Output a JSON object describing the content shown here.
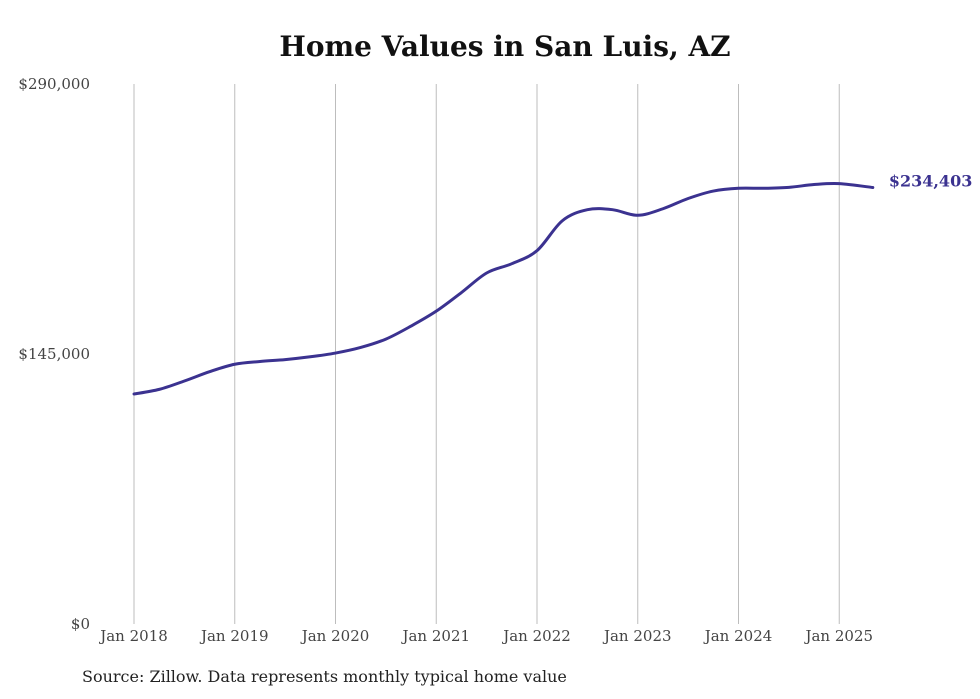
{
  "chart_data": {
    "type": "line",
    "title": "Home Values in San Luis, AZ",
    "xlabel": "",
    "ylabel": "",
    "x_ticks": [
      "Jan 2018",
      "Jan 2019",
      "Jan 2020",
      "Jan 2021",
      "Jan 2022",
      "Jan 2023",
      "Jan 2024",
      "Jan 2025"
    ],
    "y_ticks": [
      "$290,000",
      "$145,000",
      "$0"
    ],
    "ylim": [
      0,
      290000
    ],
    "xlim": [
      "2018-01",
      "2025-05"
    ],
    "grid": "vertical lines at each January",
    "line_color": "#3b3290",
    "end_label": "$234,403",
    "series": [
      {
        "x": [
          "2018-01",
          "2018-04",
          "2018-07",
          "2018-10",
          "2019-01",
          "2019-04",
          "2019-07",
          "2019-10",
          "2020-01",
          "2020-04",
          "2020-07",
          "2020-10",
          "2021-01",
          "2021-04",
          "2021-07",
          "2021-10",
          "2022-01",
          "2022-04",
          "2022-07",
          "2022-10",
          "2023-01",
          "2023-04",
          "2023-07",
          "2023-10",
          "2024-01",
          "2024-04",
          "2024-07",
          "2024-10",
          "2025-01",
          "2025-05"
        ],
        "values": [
          123500,
          126000,
          130500,
          135500,
          139500,
          141000,
          142000,
          143500,
          145500,
          148500,
          153000,
          160000,
          168000,
          178000,
          188500,
          193500,
          200500,
          216500,
          222500,
          222500,
          219500,
          223000,
          228500,
          232500,
          234000,
          234000,
          234500,
          236000,
          236500,
          234403
        ]
      }
    ]
  },
  "footer": {
    "source": "Source: Zillow. Data represents monthly typical home value"
  }
}
